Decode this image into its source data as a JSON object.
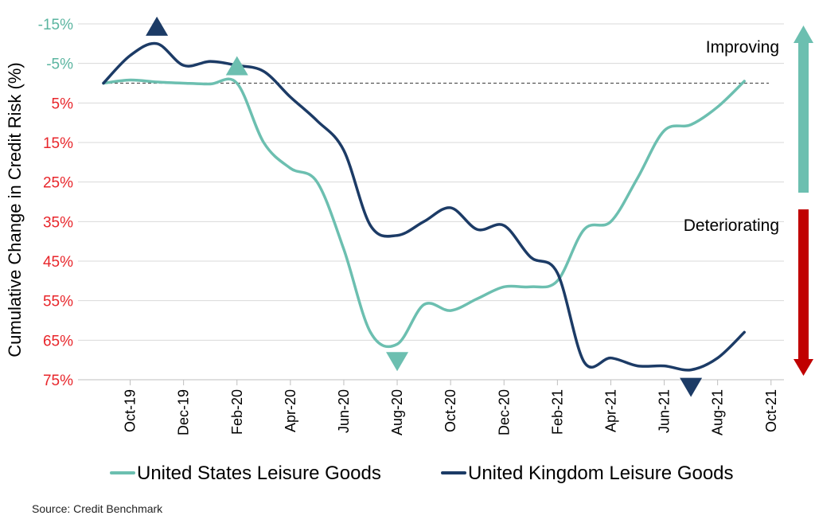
{
  "chart_data": {
    "type": "line",
    "title": "",
    "xlabel": "",
    "ylabel": "Cumulative Change in Credit Risk (%)",
    "y_reversed": true,
    "ylim": [
      -15,
      75
    ],
    "y_ticks": [
      -15,
      -5,
      5,
      15,
      25,
      35,
      45,
      55,
      65,
      75
    ],
    "y_tick_labels": [
      "-15%",
      "-5%",
      "5%",
      "15%",
      "25%",
      "35%",
      "45%",
      "55%",
      "65%",
      "75%"
    ],
    "y_tick_colors": [
      "#5bb5a0",
      "#5bb5a0",
      "#e8262b",
      "#e8262b",
      "#e8262b",
      "#e8262b",
      "#e8262b",
      "#e8262b",
      "#e8262b",
      "#e8262b"
    ],
    "x_tick_labels": [
      "Oct-19",
      "Dec-19",
      "Feb-20",
      "Apr-20",
      "Jun-20",
      "Aug-20",
      "Oct-20",
      "Dec-20",
      "Feb-21",
      "Apr-21",
      "Jun-21",
      "Aug-21",
      "Oct-21"
    ],
    "x_months_range": [
      "Sep-19",
      "Oct-21"
    ],
    "baseline": 0,
    "grid": "horizontal",
    "legend_position": "bottom",
    "series": [
      {
        "name": "United States Leisure Goods",
        "color": "#6cbfb0",
        "points": [
          [
            "2019-09-01",
            0
          ],
          [
            "2019-10-01",
            -0.8
          ],
          [
            "2019-11-01",
            -0.3
          ],
          [
            "2019-12-01",
            0
          ],
          [
            "2020-01-01",
            0.2
          ],
          [
            "2020-02-01",
            0
          ],
          [
            "2020-03-01",
            15
          ],
          [
            "2020-04-01",
            21.5
          ],
          [
            "2020-05-01",
            25
          ],
          [
            "2020-06-01",
            42
          ],
          [
            "2020-07-01",
            63
          ],
          [
            "2020-08-01",
            66
          ],
          [
            "2020-09-01",
            56
          ],
          [
            "2020-10-01",
            57.5
          ],
          [
            "2020-11-01",
            54.5
          ],
          [
            "2020-12-01",
            51.5
          ],
          [
            "2021-01-01",
            51.5
          ],
          [
            "2021-02-01",
            50
          ],
          [
            "2021-03-01",
            37
          ],
          [
            "2021-04-01",
            35
          ],
          [
            "2021-05-01",
            24
          ],
          [
            "2021-06-01",
            12
          ],
          [
            "2021-07-01",
            10.5
          ],
          [
            "2021-08-01",
            6
          ],
          [
            "2021-09-01",
            -0.5
          ]
        ]
      },
      {
        "name": "United Kingdom Leisure Goods",
        "color": "#1c3b66",
        "points": [
          [
            "2019-09-01",
            0
          ],
          [
            "2019-10-01",
            -7
          ],
          [
            "2019-11-01",
            -10
          ],
          [
            "2019-12-01",
            -4.5
          ],
          [
            "2020-01-01",
            -5.5
          ],
          [
            "2020-02-01",
            -4.5
          ],
          [
            "2020-03-01",
            -3
          ],
          [
            "2020-04-01",
            3.5
          ],
          [
            "2020-05-01",
            9.5
          ],
          [
            "2020-06-01",
            17
          ],
          [
            "2020-07-01",
            36
          ],
          [
            "2020-08-01",
            38.5
          ],
          [
            "2020-09-01",
            35
          ],
          [
            "2020-10-01",
            31.5
          ],
          [
            "2020-11-01",
            37
          ],
          [
            "2020-12-01",
            36
          ],
          [
            "2021-01-01",
            44
          ],
          [
            "2021-02-01",
            48
          ],
          [
            "2021-03-01",
            70.5
          ],
          [
            "2021-04-01",
            69.5
          ],
          [
            "2021-05-01",
            71.5
          ],
          [
            "2021-06-01",
            71.5
          ],
          [
            "2021-07-01",
            72.5
          ],
          [
            "2021-08-01",
            69.5
          ],
          [
            "2021-09-01",
            63
          ]
        ]
      }
    ],
    "markers": [
      {
        "series": "United Kingdom Leisure Goods",
        "date": "2019-11-01",
        "value": -10,
        "shape": "triangle-up",
        "color": "#1c3b66"
      },
      {
        "series": "United States Leisure Goods",
        "date": "2020-02-01",
        "value": 0,
        "shape": "triangle-up",
        "color": "#6cbfb0"
      },
      {
        "series": "United States Leisure Goods",
        "date": "2020-08-01",
        "value": 66,
        "shape": "triangle-down",
        "color": "#6cbfb0"
      },
      {
        "series": "United Kingdom Leisure Goods",
        "date": "2021-07-01",
        "value": 72.5,
        "shape": "triangle-down",
        "color": "#1c3b66"
      }
    ],
    "annotations": [
      {
        "text": "Improving",
        "arrow": "up",
        "color": "#6cbfb0"
      },
      {
        "text": "Deteriorating",
        "arrow": "down",
        "color": "#c00000"
      }
    ]
  },
  "source_text": "Source: Credit Benchmark"
}
